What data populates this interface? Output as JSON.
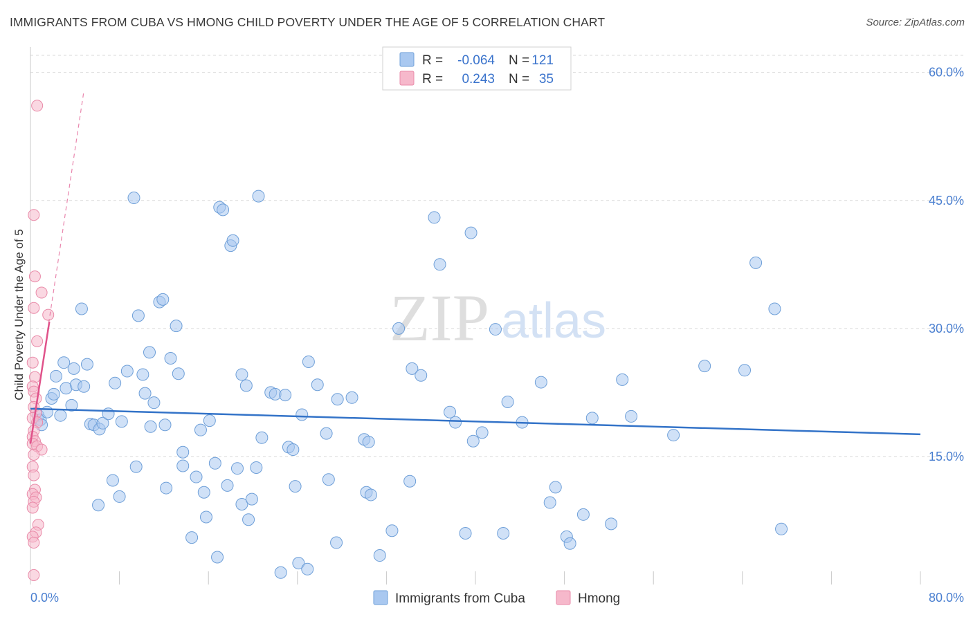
{
  "title": "IMMIGRANTS FROM CUBA VS HMONG CHILD POVERTY UNDER THE AGE OF 5 CORRELATION CHART",
  "source": "Source: ZipAtlas.com",
  "watermark": {
    "zip": "ZIP",
    "atlas": "atlas"
  },
  "colors": {
    "blue_fill": "#a9c8f0",
    "blue_stroke": "#6e9fd8",
    "blue_line": "#3373c8",
    "pink_fill": "#f6b8cb",
    "pink_stroke": "#e98aa8",
    "pink_line": "#e0528a",
    "grid": "#d9d9d9",
    "axis_text": "#4a7fd0"
  },
  "legend": {
    "rows": [
      {
        "r_label": "R =",
        "r_value": "-0.064",
        "n_label": "N =",
        "n_value": "121",
        "series": "blue"
      },
      {
        "r_label": "R =",
        "r_value": "0.243",
        "n_label": "N =",
        "n_value": "35",
        "series": "pink"
      }
    ]
  },
  "chart_data": {
    "type": "scatter",
    "title": "IMMIGRANTS FROM CUBA VS HMONG CHILD POVERTY UNDER THE AGE OF 5 CORRELATION CHART",
    "xlabel": "",
    "ylabel": "Child Poverty Under the Age of 5",
    "xlim": [
      0,
      80
    ],
    "ylim": [
      0,
      62
    ],
    "x_tick_labels": [
      "0.0%",
      "80.0%"
    ],
    "y_ticks": [
      15,
      30,
      45,
      60
    ],
    "y_tick_labels": [
      "15.0%",
      "30.0%",
      "45.0%",
      "60.0%"
    ],
    "series": [
      {
        "name": "Immigrants from Cuba",
        "color": "blue",
        "trend": {
          "x": [
            0,
            80
          ],
          "y": [
            20.6,
            17.6
          ]
        },
        "points": [
          [
            0.7,
            19.8
          ],
          [
            0.9,
            19.3
          ],
          [
            1.0,
            18.7
          ],
          [
            1.5,
            20.2
          ],
          [
            1.9,
            21.8
          ],
          [
            2.1,
            22.3
          ],
          [
            2.3,
            24.4
          ],
          [
            2.7,
            19.8
          ],
          [
            3.0,
            26.0
          ],
          [
            3.2,
            23.0
          ],
          [
            3.7,
            21.0
          ],
          [
            3.9,
            25.3
          ],
          [
            4.1,
            23.4
          ],
          [
            4.6,
            32.3
          ],
          [
            4.8,
            23.2
          ],
          [
            5.1,
            25.8
          ],
          [
            5.4,
            18.8
          ],
          [
            5.7,
            18.7
          ],
          [
            6.1,
            9.3
          ],
          [
            6.2,
            18.2
          ],
          [
            6.5,
            18.9
          ],
          [
            7.0,
            20.0
          ],
          [
            7.4,
            12.2
          ],
          [
            7.6,
            23.6
          ],
          [
            8.0,
            10.3
          ],
          [
            8.2,
            19.1
          ],
          [
            8.7,
            25.0
          ],
          [
            9.3,
            45.3
          ],
          [
            9.5,
            13.8
          ],
          [
            9.7,
            31.5
          ],
          [
            10.1,
            24.6
          ],
          [
            10.3,
            22.4
          ],
          [
            10.7,
            27.2
          ],
          [
            10.8,
            18.5
          ],
          [
            11.1,
            21.3
          ],
          [
            11.6,
            33.1
          ],
          [
            11.9,
            33.4
          ],
          [
            12.1,
            18.7
          ],
          [
            12.2,
            11.3
          ],
          [
            12.6,
            26.5
          ],
          [
            13.1,
            30.3
          ],
          [
            13.3,
            24.7
          ],
          [
            13.7,
            15.5
          ],
          [
            13.7,
            13.9
          ],
          [
            14.5,
            5.5
          ],
          [
            14.9,
            12.6
          ],
          [
            15.3,
            18.1
          ],
          [
            15.6,
            10.8
          ],
          [
            15.8,
            7.9
          ],
          [
            16.1,
            19.2
          ],
          [
            16.6,
            14.2
          ],
          [
            16.8,
            3.2
          ],
          [
            17.0,
            44.2
          ],
          [
            17.3,
            43.9
          ],
          [
            17.7,
            11.6
          ],
          [
            18.0,
            39.7
          ],
          [
            18.2,
            40.3
          ],
          [
            18.6,
            13.6
          ],
          [
            19.0,
            24.6
          ],
          [
            19.0,
            9.4
          ],
          [
            19.4,
            23.3
          ],
          [
            19.6,
            7.6
          ],
          [
            19.9,
            10.0
          ],
          [
            20.3,
            13.7
          ],
          [
            20.5,
            45.5
          ],
          [
            20.8,
            17.2
          ],
          [
            21.6,
            22.5
          ],
          [
            22.0,
            22.3
          ],
          [
            22.5,
            1.4
          ],
          [
            22.9,
            22.2
          ],
          [
            23.2,
            16.1
          ],
          [
            23.6,
            15.8
          ],
          [
            23.8,
            11.5
          ],
          [
            24.1,
            2.5
          ],
          [
            24.4,
            19.9
          ],
          [
            24.9,
            1.8
          ],
          [
            25.0,
            26.1
          ],
          [
            25.8,
            23.4
          ],
          [
            26.6,
            17.7
          ],
          [
            26.8,
            12.3
          ],
          [
            27.5,
            4.9
          ],
          [
            27.6,
            21.7
          ],
          [
            28.9,
            21.9
          ],
          [
            30.0,
            17.0
          ],
          [
            30.2,
            10.8
          ],
          [
            30.4,
            16.7
          ],
          [
            30.6,
            10.5
          ],
          [
            31.4,
            3.4
          ],
          [
            32.5,
            6.3
          ],
          [
            33.1,
            30.0
          ],
          [
            34.1,
            12.1
          ],
          [
            34.3,
            25.3
          ],
          [
            35.1,
            24.5
          ],
          [
            36.3,
            43.0
          ],
          [
            36.8,
            37.5
          ],
          [
            37.7,
            20.2
          ],
          [
            38.2,
            19.0
          ],
          [
            39.1,
            6.0
          ],
          [
            39.6,
            41.2
          ],
          [
            39.8,
            16.8
          ],
          [
            40.6,
            17.8
          ],
          [
            41.8,
            29.9
          ],
          [
            42.5,
            6.0
          ],
          [
            42.9,
            21.4
          ],
          [
            44.2,
            19.0
          ],
          [
            45.9,
            23.7
          ],
          [
            46.7,
            9.6
          ],
          [
            47.2,
            11.4
          ],
          [
            48.2,
            5.6
          ],
          [
            48.5,
            4.8
          ],
          [
            49.7,
            8.2
          ],
          [
            50.5,
            19.5
          ],
          [
            52.2,
            7.1
          ],
          [
            53.2,
            24.0
          ],
          [
            54.0,
            19.7
          ],
          [
            57.8,
            17.5
          ],
          [
            60.6,
            25.6
          ],
          [
            64.2,
            25.1
          ],
          [
            65.2,
            37.7
          ],
          [
            66.9,
            32.3
          ],
          [
            67.5,
            6.5
          ]
        ]
      },
      {
        "name": "Hmong",
        "color": "pink",
        "trend": {
          "x": [
            0.0,
            1.7
          ],
          "y": [
            16.5,
            30.8
          ]
        },
        "trend_extended": {
          "x": [
            0.0,
            4.8
          ],
          "y": [
            16.5,
            57.8
          ]
        },
        "points": [
          [
            0.6,
            56.1
          ],
          [
            0.3,
            43.3
          ],
          [
            0.4,
            36.1
          ],
          [
            1.0,
            34.2
          ],
          [
            0.3,
            32.4
          ],
          [
            1.6,
            31.6
          ],
          [
            0.6,
            28.5
          ],
          [
            0.2,
            26.0
          ],
          [
            0.4,
            24.3
          ],
          [
            0.2,
            23.2
          ],
          [
            0.3,
            22.6
          ],
          [
            0.5,
            21.8
          ],
          [
            0.3,
            20.8
          ],
          [
            0.5,
            20.1
          ],
          [
            0.2,
            19.5
          ],
          [
            0.6,
            19.0
          ],
          [
            0.3,
            18.0
          ],
          [
            0.2,
            17.3
          ],
          [
            0.4,
            16.8
          ],
          [
            0.2,
            16.5
          ],
          [
            0.6,
            16.2
          ],
          [
            1.0,
            15.8
          ],
          [
            0.3,
            15.2
          ],
          [
            0.2,
            13.8
          ],
          [
            0.3,
            12.8
          ],
          [
            0.4,
            11.1
          ],
          [
            0.2,
            10.6
          ],
          [
            0.5,
            10.2
          ],
          [
            0.3,
            9.7
          ],
          [
            0.2,
            9.0
          ],
          [
            0.7,
            7.0
          ],
          [
            0.5,
            6.1
          ],
          [
            0.2,
            5.6
          ],
          [
            0.3,
            4.9
          ],
          [
            0.3,
            1.1
          ]
        ]
      }
    ],
    "legend_placement": "top-center",
    "bottom_legend": [
      "Immigrants from Cuba",
      "Hmong"
    ]
  }
}
